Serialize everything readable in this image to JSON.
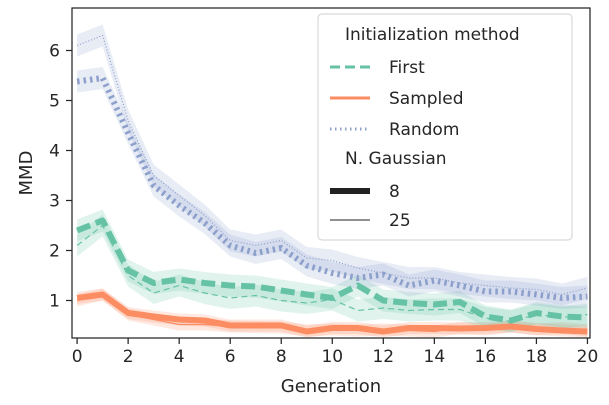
{
  "chart_data": {
    "type": "line",
    "xlabel": "Generation",
    "ylabel": "MMD",
    "xlim": [
      -0.2,
      20.1
    ],
    "ylim": [
      0.25,
      6.85
    ],
    "xticks": [
      0,
      2,
      4,
      6,
      8,
      10,
      12,
      14,
      16,
      18,
      20
    ],
    "yticks": [
      1,
      2,
      3,
      4,
      5,
      6
    ],
    "grid": false,
    "legend": {
      "position": "top-right",
      "hue_title": "Initialization method",
      "size_title": "N. Gaussian"
    },
    "colors": {
      "First": "#66c2a5",
      "Sampled": "#fc8d62",
      "Random": "#8da0cb",
      "size_key": "#222222"
    },
    "x": [
      0,
      1,
      2,
      3,
      4,
      5,
      6,
      7,
      8,
      9,
      10,
      11,
      12,
      13,
      14,
      15,
      16,
      17,
      18,
      19,
      20
    ],
    "series": [
      {
        "name": "First",
        "gaussians": "8",
        "values": [
          2.4,
          2.6,
          1.6,
          1.35,
          1.42,
          1.35,
          1.3,
          1.28,
          1.2,
          1.12,
          1.05,
          1.3,
          1.0,
          0.95,
          0.92,
          0.97,
          0.68,
          0.6,
          0.75,
          0.68,
          0.66
        ],
        "ci": 0.22
      },
      {
        "name": "First",
        "gaussians": "25",
        "values": [
          2.1,
          2.5,
          1.5,
          1.15,
          1.3,
          1.15,
          1.05,
          1.1,
          1.0,
          0.95,
          1.02,
          0.8,
          0.85,
          0.8,
          0.82,
          0.82,
          0.65,
          0.58,
          0.72,
          0.66,
          0.72
        ],
        "ci": 0.22
      },
      {
        "name": "Sampled",
        "gaussians": "8",
        "values": [
          1.05,
          1.12,
          0.75,
          0.68,
          0.62,
          0.6,
          0.5,
          0.5,
          0.5,
          0.38,
          0.45,
          0.45,
          0.38,
          0.45,
          0.45,
          0.44,
          0.45,
          0.48,
          0.43,
          0.4,
          0.38
        ],
        "ci": 0.12
      },
      {
        "name": "Sampled",
        "gaussians": "25",
        "values": [
          1.0,
          1.12,
          0.72,
          0.62,
          0.52,
          0.52,
          0.48,
          0.47,
          0.46,
          0.4,
          0.42,
          0.4,
          0.42,
          0.4,
          0.38,
          0.45,
          0.42,
          0.48,
          0.42,
          0.45,
          0.4
        ],
        "ci": 0.12
      },
      {
        "name": "Random",
        "gaussians": "8",
        "values": [
          5.38,
          5.45,
          4.35,
          3.3,
          2.9,
          2.55,
          2.1,
          1.95,
          2.05,
          1.7,
          1.55,
          1.45,
          1.52,
          1.3,
          1.4,
          1.3,
          1.18,
          1.18,
          1.12,
          1.05,
          1.08
        ],
        "ci": 0.22
      },
      {
        "name": "Random",
        "gaussians": "25",
        "values": [
          6.1,
          6.3,
          4.6,
          3.5,
          3.1,
          2.7,
          2.2,
          2.1,
          2.2,
          1.85,
          1.8,
          1.65,
          1.55,
          1.45,
          1.45,
          1.35,
          1.3,
          1.25,
          1.22,
          1.12,
          1.25
        ],
        "ci": 0.22
      }
    ],
    "legend_labels": {
      "hue_title": "Initialization method",
      "hue_items": [
        "First",
        "Sampled",
        "Random"
      ],
      "size_title": "N. Gaussian",
      "size_items": [
        "8",
        "25"
      ]
    }
  }
}
